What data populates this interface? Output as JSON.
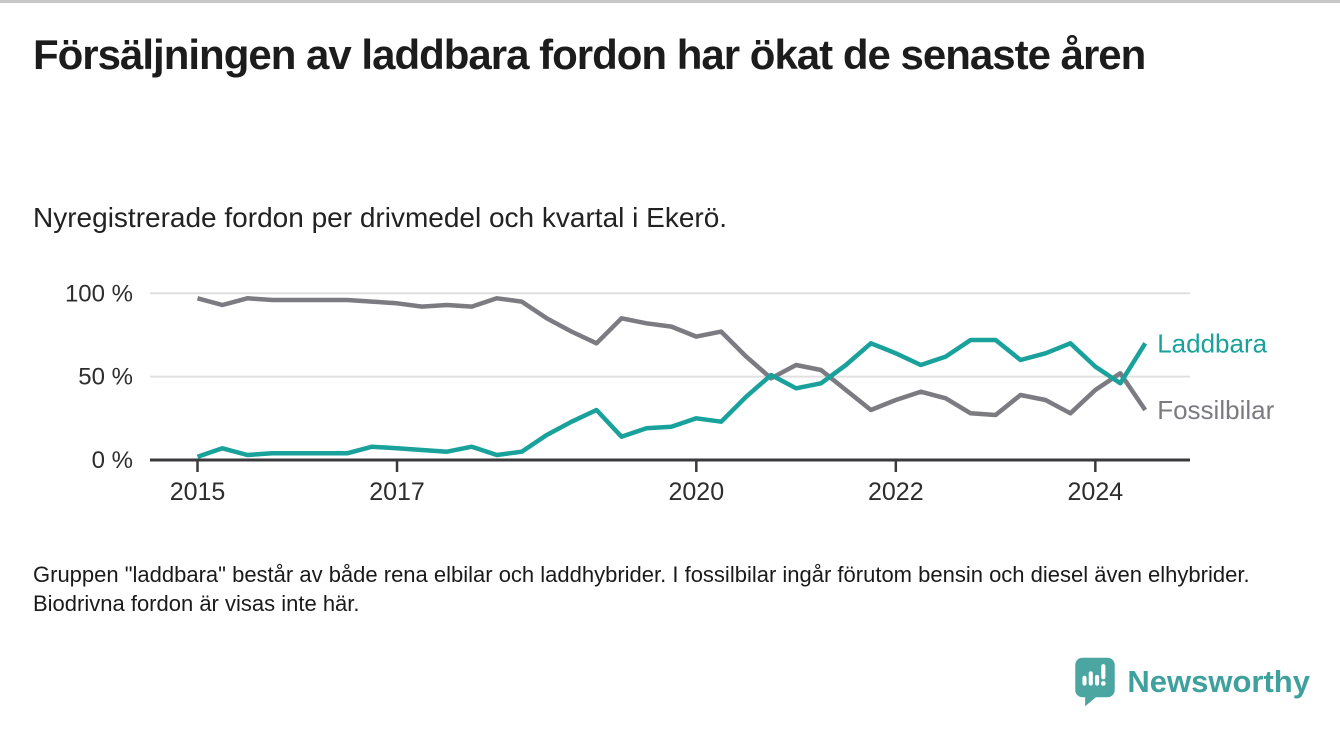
{
  "page": {
    "title": "Försäljningen av laddbara fordon har ökat de senaste åren",
    "subtitle": "Nyregistrerade fordon per drivmedel och kvartal i Ekerö.",
    "footnote": "Gruppen \"laddbara\" består av både rena elbilar och laddhybrider. I fossilbilar ingår förutom bensin och diesel även elhybrider. Biodrivna fordon är visas inte här."
  },
  "branding": {
    "name": "Newsworthy",
    "icon": "speech-bubble-bar-chart-icon",
    "icon_color": "#4BA6A2",
    "text_color": "#3FA19D"
  },
  "colors": {
    "laddbara": "#18A29B",
    "fossilbilar": "#7B7B81",
    "axis": "#3A3A3C",
    "gridline": "#E0E0E0",
    "tick_label": "#2D2D2D"
  },
  "chart_data": {
    "type": "line",
    "title": "Försäljningen av laddbara fordon har ökat de senaste åren",
    "subtitle": "Nyregistrerade fordon per drivmedel och kvartal i Ekerö.",
    "xlabel": "",
    "ylabel": "",
    "y_unit": "%",
    "ylim": [
      0,
      100
    ],
    "grid": "horizontal",
    "legend": "series-end-labels",
    "x_quarters": [
      "2015 Q1",
      "2015 Q2",
      "2015 Q3",
      "2015 Q4",
      "2016 Q1",
      "2016 Q2",
      "2016 Q3",
      "2016 Q4",
      "2017 Q1",
      "2017 Q2",
      "2017 Q3",
      "2017 Q4",
      "2018 Q1",
      "2018 Q2",
      "2018 Q3",
      "2018 Q4",
      "2019 Q1",
      "2019 Q2",
      "2019 Q3",
      "2019 Q4",
      "2020 Q1",
      "2020 Q2",
      "2020 Q3",
      "2020 Q4",
      "2021 Q1",
      "2021 Q2",
      "2021 Q3",
      "2021 Q4",
      "2022 Q1",
      "2022 Q2",
      "2022 Q3",
      "2022 Q4",
      "2023 Q1",
      "2023 Q2",
      "2023 Q3",
      "2023 Q4",
      "2024 Q1",
      "2024 Q2",
      "2024 Q3"
    ],
    "y_ticks": [
      {
        "label": "0 %",
        "value": 0
      },
      {
        "label": "50 %",
        "value": 50
      },
      {
        "label": "100 %",
        "value": 100
      }
    ],
    "x_ticks": [
      {
        "label": "2015",
        "index": 0
      },
      {
        "label": "2017",
        "index": 8
      },
      {
        "label": "2020",
        "index": 20
      },
      {
        "label": "2022",
        "index": 28
      },
      {
        "label": "2024",
        "index": 36
      }
    ],
    "series": [
      {
        "name": "Laddbara",
        "color": "#18A29B",
        "values": [
          2,
          7,
          3,
          4,
          4,
          4,
          4,
          8,
          7,
          6,
          5,
          8,
          3,
          5,
          15,
          23,
          30,
          14,
          19,
          20,
          25,
          23,
          38,
          51,
          43,
          46,
          57,
          70,
          64,
          57,
          62,
          72,
          72,
          60,
          64,
          70,
          56,
          46,
          70
        ]
      },
      {
        "name": "Fossilbilar",
        "color": "#7B7B81",
        "values": [
          97,
          93,
          97,
          96,
          96,
          96,
          96,
          95,
          94,
          92,
          93,
          92,
          97,
          95,
          85,
          77,
          70,
          85,
          82,
          80,
          74,
          77,
          62,
          49,
          57,
          54,
          42,
          30,
          36,
          41,
          37,
          28,
          27,
          39,
          36,
          28,
          42,
          52,
          30
        ]
      }
    ]
  }
}
